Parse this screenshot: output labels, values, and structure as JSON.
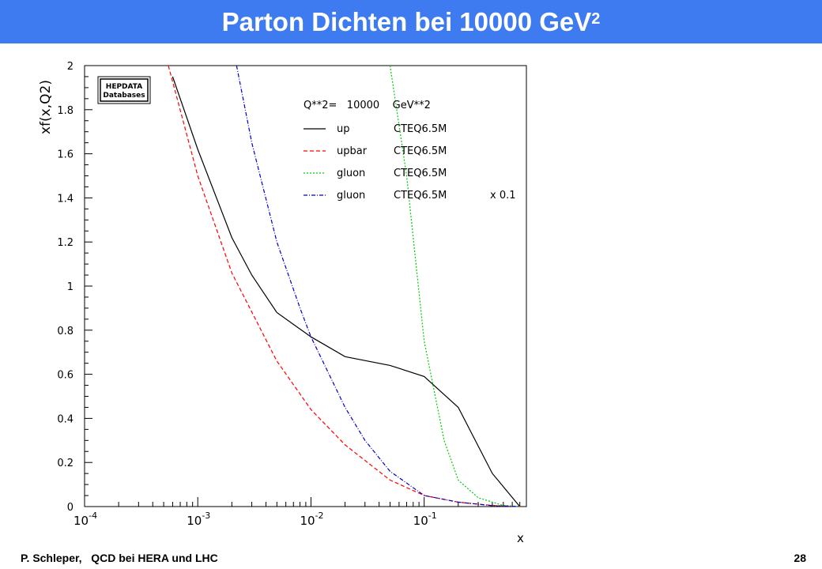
{
  "slide": {
    "title_main": "Parton Dichten bei 10000 GeV",
    "title_sup": "2",
    "footer_left": "P. Schleper,   QCD bei HERA und LHC",
    "page_number": "28"
  },
  "chart_data": {
    "type": "line",
    "ylabel": "xf(x,Q2)",
    "xlabel": "x",
    "x_scale": "log",
    "xlim": [
      0.0001,
      0.8
    ],
    "ylim": [
      0,
      2
    ],
    "y_ticks": [
      "0",
      "0.2",
      "0.4",
      "0.6",
      "0.8",
      "1",
      "1.2",
      "1.4",
      "1.6",
      "1.8",
      "2"
    ],
    "x_ticks": [
      {
        "base": "10",
        "exp": "-4"
      },
      {
        "base": "10",
        "exp": "-3"
      },
      {
        "base": "10",
        "exp": "-2"
      },
      {
        "base": "10",
        "exp": "-1"
      }
    ],
    "logo": [
      "HEPDATA",
      "Databases"
    ],
    "legend": {
      "header": "Q**2=   10000    GeV**2",
      "entries": [
        {
          "name": "up",
          "set": "CTEQ6.5M",
          "note": ""
        },
        {
          "name": "upbar",
          "set": "CTEQ6.5M",
          "note": ""
        },
        {
          "name": "gluon",
          "set": "CTEQ6.5M",
          "note": ""
        },
        {
          "name": "gluon",
          "set": "CTEQ6.5M",
          "note": "x 0.1"
        }
      ]
    },
    "series": [
      {
        "name": "up",
        "color": "#000000",
        "dash": "solid",
        "points": [
          [
            0.0006,
            1.95
          ],
          [
            0.001,
            1.62
          ],
          [
            0.002,
            1.22
          ],
          [
            0.003,
            1.05
          ],
          [
            0.005,
            0.88
          ],
          [
            0.01,
            0.77
          ],
          [
            0.02,
            0.68
          ],
          [
            0.05,
            0.64
          ],
          [
            0.1,
            0.59
          ],
          [
            0.2,
            0.45
          ],
          [
            0.4,
            0.15
          ],
          [
            0.7,
            0.0
          ]
        ]
      },
      {
        "name": "upbar",
        "color": "#ff0000",
        "dash": "dashed",
        "points": [
          [
            0.00055,
            2.0
          ],
          [
            0.001,
            1.5
          ],
          [
            0.002,
            1.06
          ],
          [
            0.005,
            0.66
          ],
          [
            0.01,
            0.44
          ],
          [
            0.02,
            0.28
          ],
          [
            0.05,
            0.12
          ],
          [
            0.1,
            0.05
          ],
          [
            0.2,
            0.02
          ],
          [
            0.4,
            0.005
          ],
          [
            0.7,
            0.0
          ]
        ]
      },
      {
        "name": "gluon",
        "color": "#00cc00",
        "dash": "dotted",
        "points": [
          [
            0.05,
            2.0
          ],
          [
            0.07,
            1.5
          ],
          [
            0.1,
            0.75
          ],
          [
            0.15,
            0.3
          ],
          [
            0.2,
            0.12
          ],
          [
            0.3,
            0.04
          ],
          [
            0.5,
            0.005
          ],
          [
            0.7,
            0.0
          ]
        ]
      },
      {
        "name": "gluon x 0.1",
        "color": "#0000cc",
        "dash": "dashdot",
        "points": [
          [
            0.0022,
            2.0
          ],
          [
            0.003,
            1.65
          ],
          [
            0.005,
            1.2
          ],
          [
            0.008,
            0.9
          ],
          [
            0.01,
            0.77
          ],
          [
            0.02,
            0.45
          ],
          [
            0.03,
            0.3
          ],
          [
            0.05,
            0.16
          ],
          [
            0.1,
            0.05
          ],
          [
            0.2,
            0.02
          ],
          [
            0.4,
            0.004
          ],
          [
            0.7,
            0.0
          ]
        ]
      }
    ]
  }
}
